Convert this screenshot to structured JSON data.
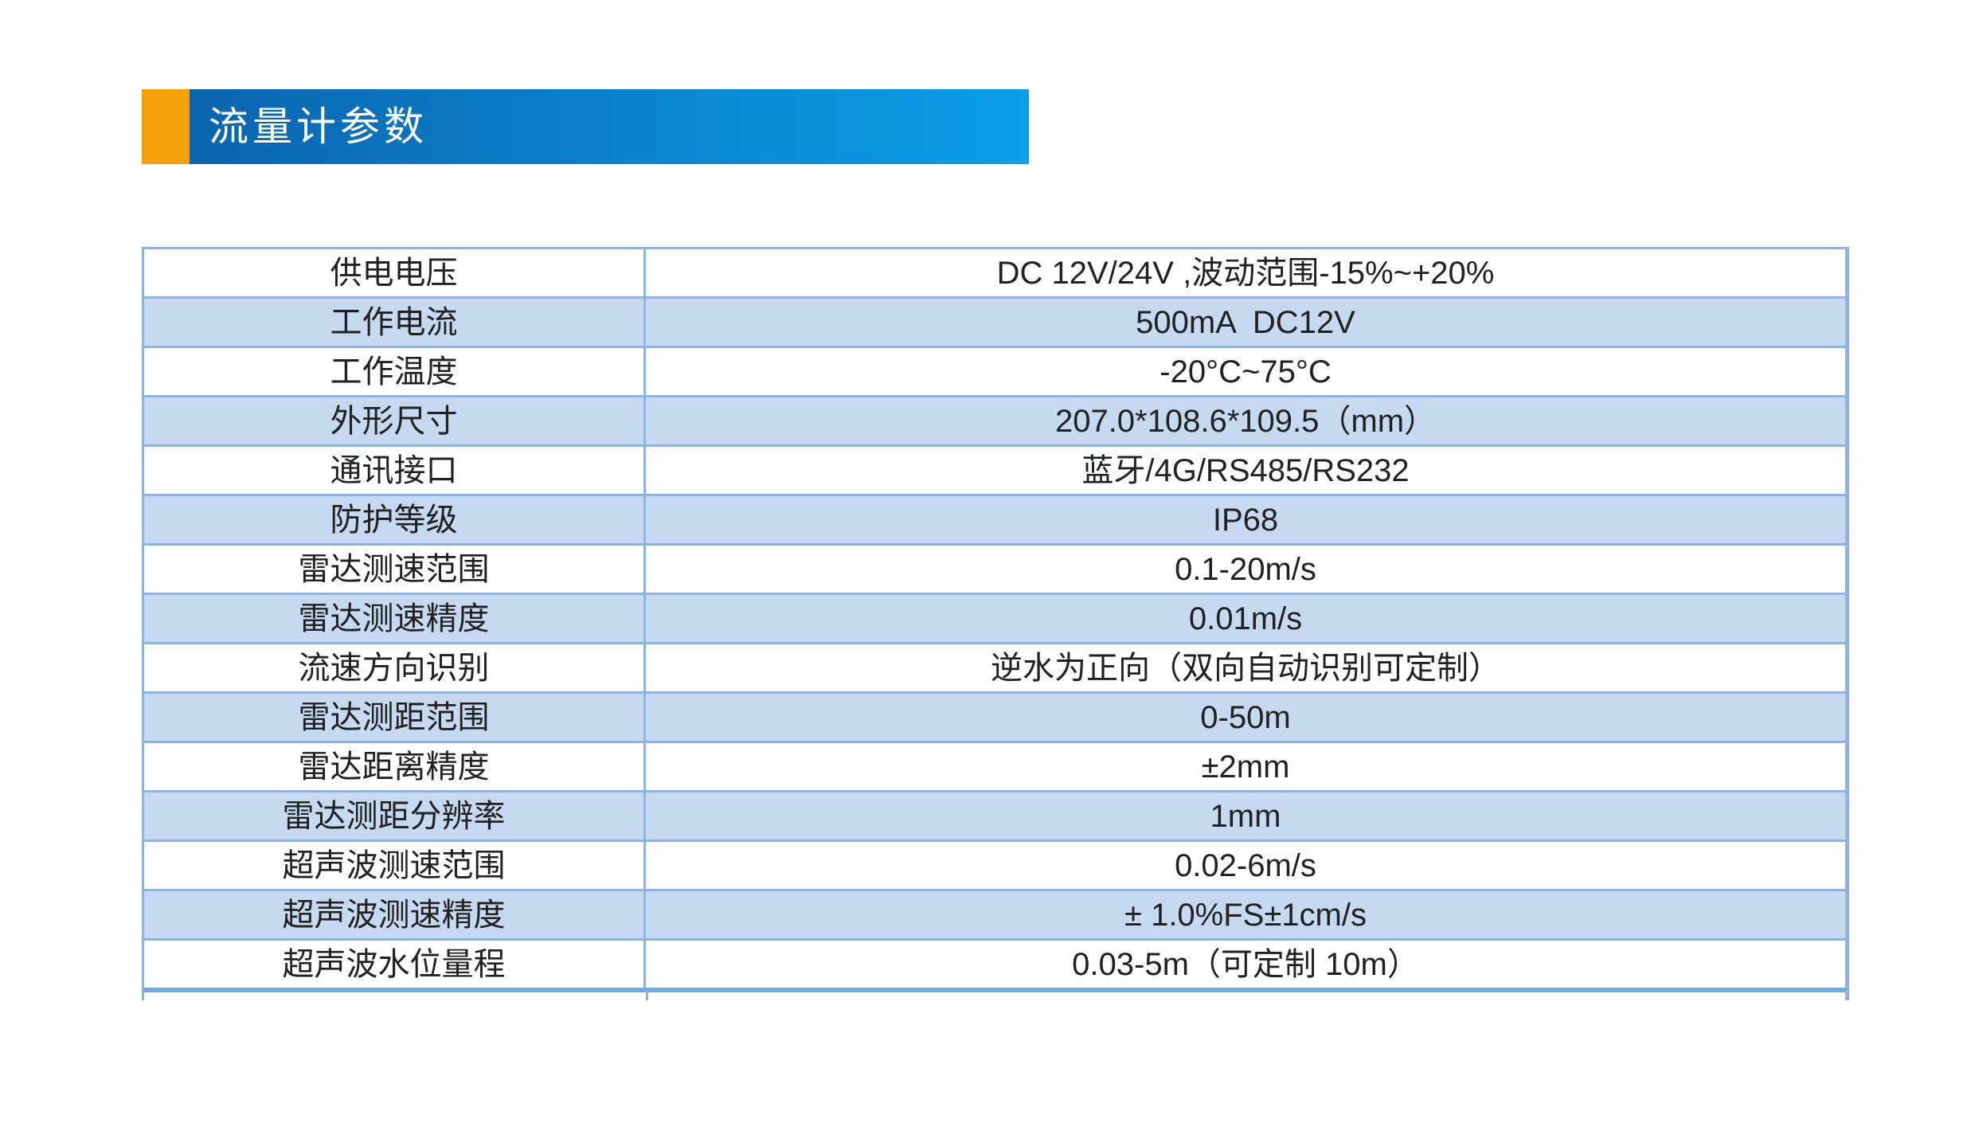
{
  "theme": {
    "accent": "#f6a109",
    "g1": "#0b64ae",
    "g2": "#0a9fe8",
    "stripe": "#c6d9f0",
    "line": "#8fb3dd",
    "heavy": "#73a9db",
    "text": "#212121",
    "title": "#ffffff"
  },
  "header": {
    "title": "流量计参数"
  },
  "table": {
    "rows": [
      {
        "param": "供电电压",
        "value": "DC 12V/24V ,波动范围-15%~+20%"
      },
      {
        "param": "工作电流",
        "value": "500mA  DC12V"
      },
      {
        "param": "工作温度",
        "value": "-20°C~75°C"
      },
      {
        "param": "外形尺寸",
        "value": "207.0*108.6*109.5（mm）"
      },
      {
        "param": "通讯接口",
        "value": "蓝牙/4G/RS485/RS232"
      },
      {
        "param": "防护等级",
        "value": "IP68"
      },
      {
        "param": "雷达测速范围",
        "value": "0.1-20m/s"
      },
      {
        "param": "雷达测速精度",
        "value": "0.01m/s"
      },
      {
        "param": "流速方向识别",
        "value": "逆水为正向（双向自动识别可定制）"
      },
      {
        "param": "雷达测距范围",
        "value": "0-50m"
      },
      {
        "param": "雷达距离精度",
        "value": "±2mm"
      },
      {
        "param": "雷达测距分辨率",
        "value": "1mm"
      },
      {
        "param": "超声波测速范围",
        "value": "0.02-6m/s"
      },
      {
        "param": "超声波测速精度",
        "value": "± 1.0%FS±1cm/s"
      },
      {
        "param": "超声波水位量程",
        "value": "0.03-5m（可定制 10m）"
      }
    ]
  }
}
